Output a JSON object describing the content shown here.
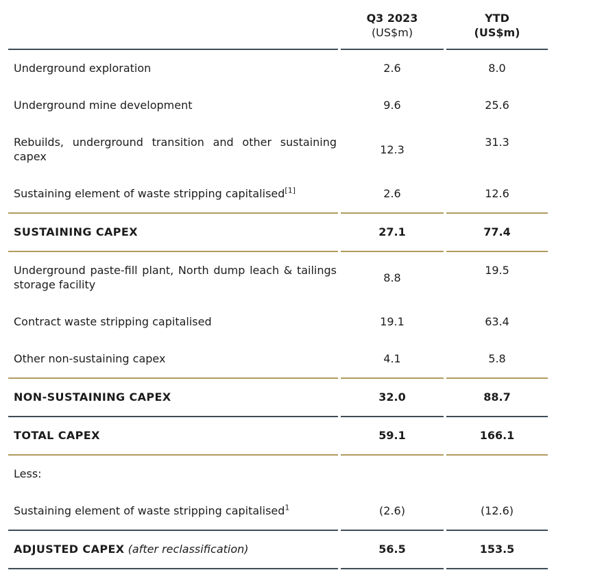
{
  "colors": {
    "gold_rule": "#b29a5e",
    "dark_rule": "#3d4b55",
    "text": "#1c1c1c",
    "background": "#ffffff"
  },
  "table": {
    "header": {
      "q3": {
        "line1": "Q3 2023",
        "line2": "(US$m)"
      },
      "ytd": {
        "line1": "YTD",
        "line2": "(US$m)"
      }
    },
    "rows": [
      {
        "label": "Underground exploration",
        "q3": "2.6",
        "ytd": "8.0",
        "bold": false,
        "rule_below": "none"
      },
      {
        "label": "Underground mine development",
        "q3": "9.6",
        "ytd": "25.6",
        "bold": false,
        "rule_below": "none"
      },
      {
        "label": "Rebuilds, underground transition and other sustaining capex",
        "q3": "12.3",
        "ytd": "31.3",
        "bold": false,
        "rule_below": "none"
      },
      {
        "label": "Sustaining element of waste stripping capitalised",
        "sup": "[1]",
        "q3": "2.6",
        "ytd": "12.6",
        "bold": false,
        "rule_below": "gold"
      },
      {
        "label": "SUSTAINING CAPEX",
        "q3": "27.1",
        "ytd": "77.4",
        "bold": true,
        "rule_below": "gold"
      },
      {
        "label": "Underground paste-fill plant, North dump leach & tailings storage facility",
        "q3": "8.8",
        "ytd": "19.5",
        "bold": false,
        "rule_below": "none"
      },
      {
        "label": "Contract waste stripping capitalised",
        "q3": "19.1",
        "ytd": "63.4",
        "bold": false,
        "rule_below": "none"
      },
      {
        "label": "Other non-sustaining capex",
        "q3": "4.1",
        "ytd": "5.8",
        "bold": false,
        "rule_below": "gold"
      },
      {
        "label": "NON-SUSTAINING CAPEX",
        "q3": "32.0",
        "ytd": "88.7",
        "bold": true,
        "rule_below": "dark"
      },
      {
        "label": "TOTAL CAPEX",
        "q3": "59.1",
        "ytd": "166.1",
        "bold": true,
        "rule_below": "gold"
      },
      {
        "label": "Less:",
        "q3": "",
        "ytd": "",
        "bold": false,
        "rule_below": "none"
      },
      {
        "label": "Sustaining element of waste stripping capitalised",
        "sup": "1",
        "q3": "(2.6)",
        "ytd": "(12.6)",
        "bold": false,
        "rule_below": "dark"
      },
      {
        "label": "ADJUSTED CAPEX",
        "label_italic_suffix": "(after reclassification)",
        "q3": "56.5",
        "ytd": "153.5",
        "bold": true,
        "rule_below": "dark"
      }
    ]
  }
}
